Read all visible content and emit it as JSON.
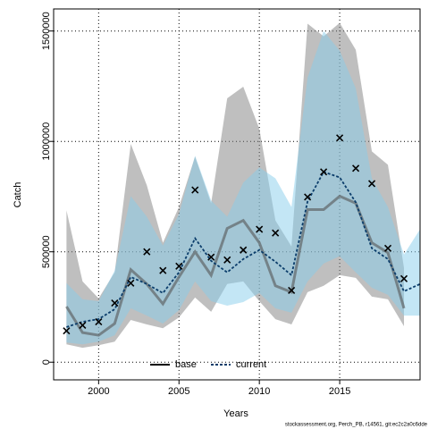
{
  "chart_data": {
    "type": "line",
    "x_label": "Years",
    "y_label": "Catch",
    "footer": "stockassessment.org, Perch_PB, r14561, git:ec2c2a0c6dde",
    "x": [
      1998,
      1999,
      2000,
      2001,
      2002,
      2003,
      2004,
      2005,
      2006,
      2007,
      2008,
      2009,
      2010,
      2011,
      2012,
      2013,
      2014,
      2015,
      2016,
      2017,
      2018,
      2019,
      2020
    ],
    "xlim": [
      1997.2,
      2020
    ],
    "xticks": [
      2000,
      2005,
      2010,
      2015
    ],
    "ylim": [
      -80000,
      1600000
    ],
    "yticks": [
      0,
      500000,
      1000000,
      1500000
    ],
    "grid": true,
    "legend": "bottom",
    "series": [
      {
        "name": "base",
        "color": "#555555",
        "band_color": "#808080",
        "dash": false,
        "values": [
          252000,
          134000,
          122000,
          175000,
          419000,
          354000,
          264000,
          386000,
          500000,
          394000,
          606000,
          642000,
          541000,
          346000,
          317000,
          691000,
          691000,
          752000,
          720000,
          541000,
          496000,
          244000,
          null
        ],
        "upper": [
          687000,
          366000,
          289000,
          407000,
          988000,
          801000,
          541000,
          703000,
          931000,
          720000,
          1195000,
          1248000,
          1057000,
          642000,
          524000,
          1533000,
          1476000,
          1537000,
          1415000,
          955000,
          894000,
          427000,
          null
        ],
        "lower": [
          81000,
          65000,
          77000,
          93000,
          191000,
          171000,
          154000,
          203000,
          293000,
          228000,
          354000,
          366000,
          276000,
          195000,
          171000,
          317000,
          346000,
          394000,
          382000,
          297000,
          285000,
          163000,
          null
        ]
      },
      {
        "name": "current",
        "color": "#0b3d6b",
        "band_color": "#87ceeb",
        "dash": true,
        "values": [
          159000,
          183000,
          195000,
          240000,
          386000,
          354000,
          313000,
          407000,
          561000,
          459000,
          407000,
          467000,
          508000,
          455000,
          394000,
          728000,
          862000,
          837000,
          724000,
          516000,
          467000,
          321000,
          354000
        ],
        "upper": [
          358000,
          285000,
          276000,
          415000,
          752000,
          659000,
          528000,
          671000,
          935000,
          732000,
          659000,
          813000,
          882000,
          833000,
          703000,
          1289000,
          1500000,
          1411000,
          1240000,
          833000,
          703000,
          488000,
          602000
        ],
        "lower": [
          89000,
          81000,
          93000,
          122000,
          244000,
          211000,
          175000,
          236000,
          366000,
          276000,
          256000,
          272000,
          313000,
          244000,
          224000,
          366000,
          447000,
          480000,
          407000,
          337000,
          305000,
          211000,
          211000
        ]
      }
    ],
    "points": {
      "color": "#000000",
      "values": [
        142000,
        167000,
        183000,
        268000,
        358000,
        500000,
        415000,
        435000,
        780000,
        476000,
        463000,
        508000,
        602000,
        585000,
        325000,
        748000,
        862000,
        1016000,
        878000,
        809000,
        516000,
        378000,
        null
      ]
    }
  }
}
